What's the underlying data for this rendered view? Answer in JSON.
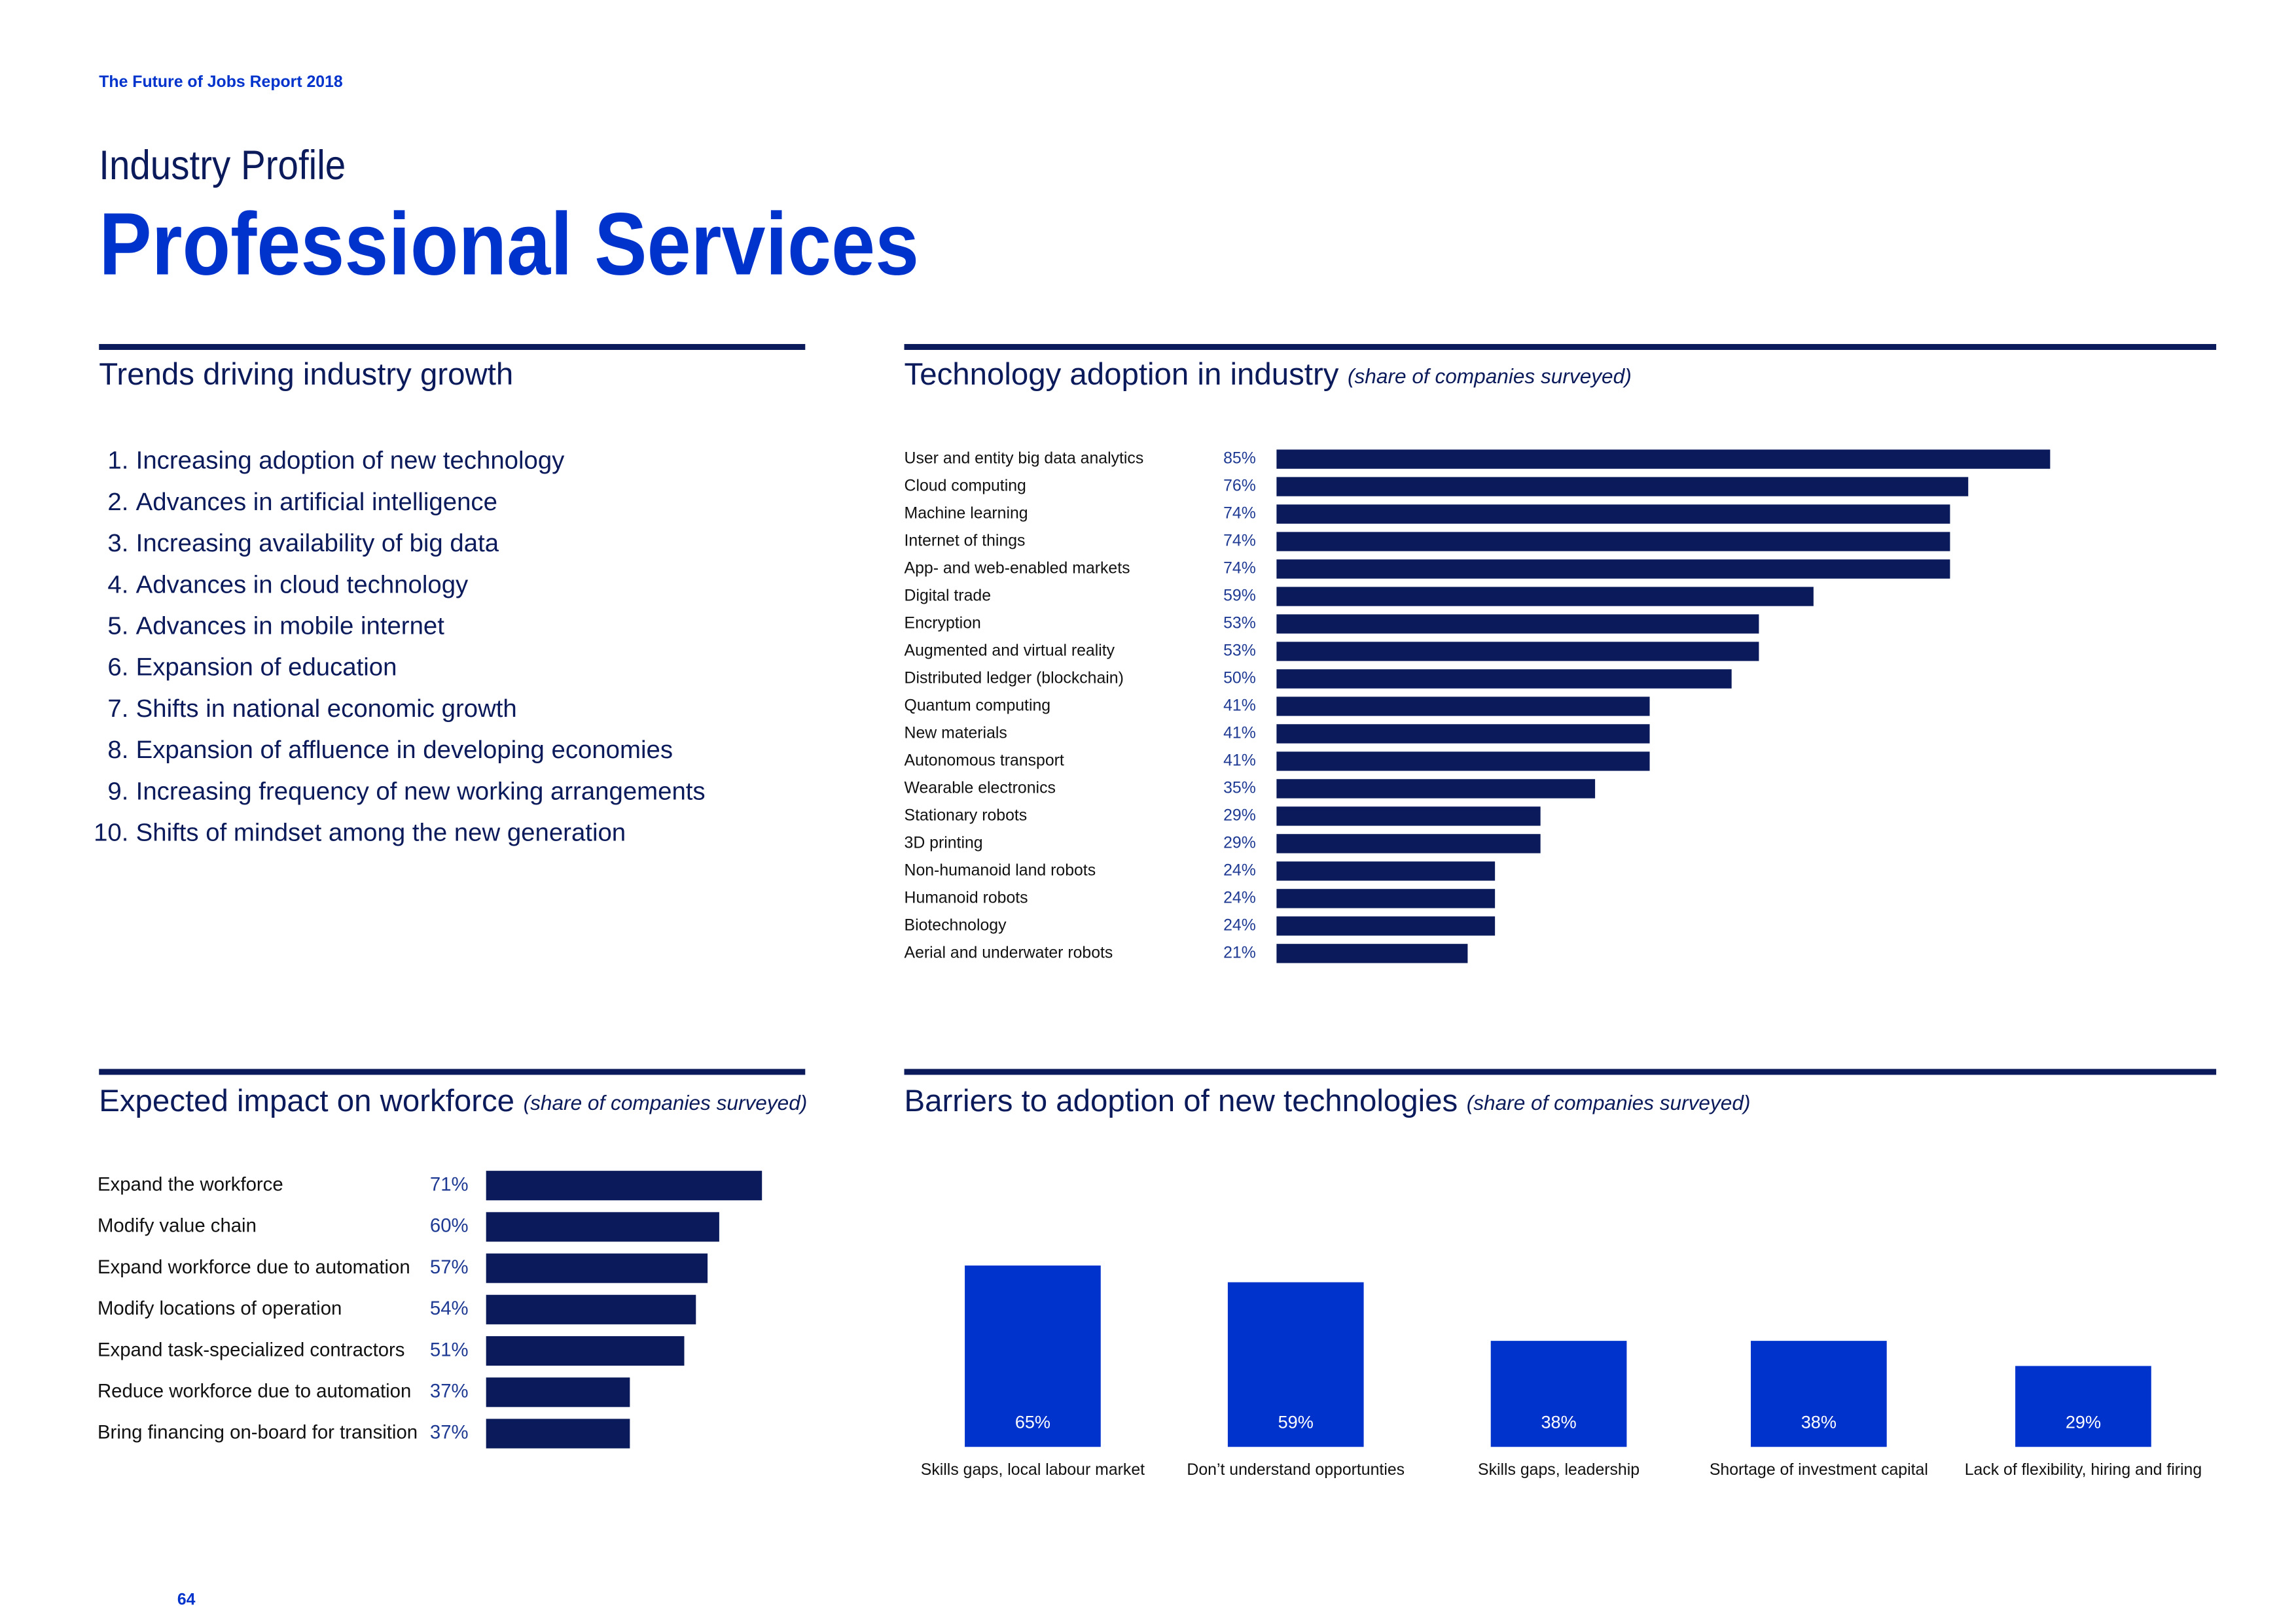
{
  "header": {
    "running_title": "The Future of Jobs Report 2018",
    "kicker": "Industry Profile",
    "title": "Professional Services",
    "page_number": "64"
  },
  "trends": {
    "title": "Trends driving industry growth",
    "items": [
      {
        "number": "1.",
        "text": "Increasing adoption of new technology"
      },
      {
        "number": "2.",
        "text": "Advances in artificial intelligence"
      },
      {
        "number": "3.",
        "text": "Increasing availability of big data"
      },
      {
        "number": "4.",
        "text": "Advances in cloud technology"
      },
      {
        "number": "5.",
        "text": "Advances in mobile internet"
      },
      {
        "number": "6.",
        "text": "Expansion of education"
      },
      {
        "number": "7.",
        "text": "Shifts in national economic growth"
      },
      {
        "number": "8.",
        "text": "Expansion of affluence in developing economies"
      },
      {
        "number": "9.",
        "text": "Increasing frequency of new working arrangements"
      },
      {
        "number": "10.",
        "text": "Shifts of mindset among the new generation"
      }
    ]
  },
  "chart_data": [
    {
      "type": "hbar",
      "title": "Technology adoption in industry",
      "subtitle": "(share of companies surveyed)",
      "categories": [
        "User and entity big data analytics",
        "Cloud computing",
        "Machine learning",
        "Internet of things",
        "App- and web-enabled markets",
        "Digital trade",
        "Encryption",
        "Augmented and virtual reality",
        "Distributed ledger (blockchain)",
        "Quantum computing",
        "New materials",
        "Autonomous transport",
        "Wearable electronics",
        "Stationary robots",
        "3D printing",
        "Non-humanoid land robots",
        "Humanoid robots",
        "Biotechnology",
        "Aerial and underwater robots"
      ],
      "values": [
        85,
        76,
        74,
        74,
        74,
        59,
        53,
        53,
        50,
        41,
        41,
        41,
        35,
        29,
        29,
        24,
        24,
        24,
        21
      ],
      "value_labels": [
        "85%",
        "76%",
        "74%",
        "74%",
        "74%",
        "59%",
        "53%",
        "53%",
        "50%",
        "41%",
        "41%",
        "41%",
        "35%",
        "29%",
        "29%",
        "24%",
        "24%",
        "24%",
        "21%"
      ],
      "color": "#0b1a5a",
      "xlim": [
        0,
        100
      ]
    },
    {
      "type": "hbar",
      "title": "Expected impact on workforce",
      "subtitle": "(share of companies surveyed)",
      "categories": [
        "Expand the workforce",
        "Modify value chain",
        "Expand workforce due to automation",
        "Modify locations of operation",
        "Expand task-specialized contractors",
        "Reduce workforce due to automation",
        "Bring financing on-board for transition"
      ],
      "values": [
        71,
        60,
        57,
        54,
        51,
        37,
        37
      ],
      "value_labels": [
        "71%",
        "60%",
        "57%",
        "54%",
        "51%",
        "37%",
        "37%"
      ],
      "color": "#0b1a5a",
      "xlim": [
        0,
        100
      ]
    },
    {
      "type": "bar",
      "title": "Barriers to adoption of new technologies",
      "subtitle": "(share of companies surveyed)",
      "categories": [
        "Skills gaps, local labour market",
        "Don’t understand opportunties",
        "Skills gaps, leadership",
        "Shortage of investment capital",
        "Lack of flexibility, hiring and firing"
      ],
      "values": [
        65,
        59,
        38,
        38,
        29
      ],
      "value_labels": [
        "65%",
        "59%",
        "38%",
        "38%",
        "29%"
      ],
      "color": "#0033cc",
      "ylim": [
        0,
        100
      ]
    }
  ]
}
